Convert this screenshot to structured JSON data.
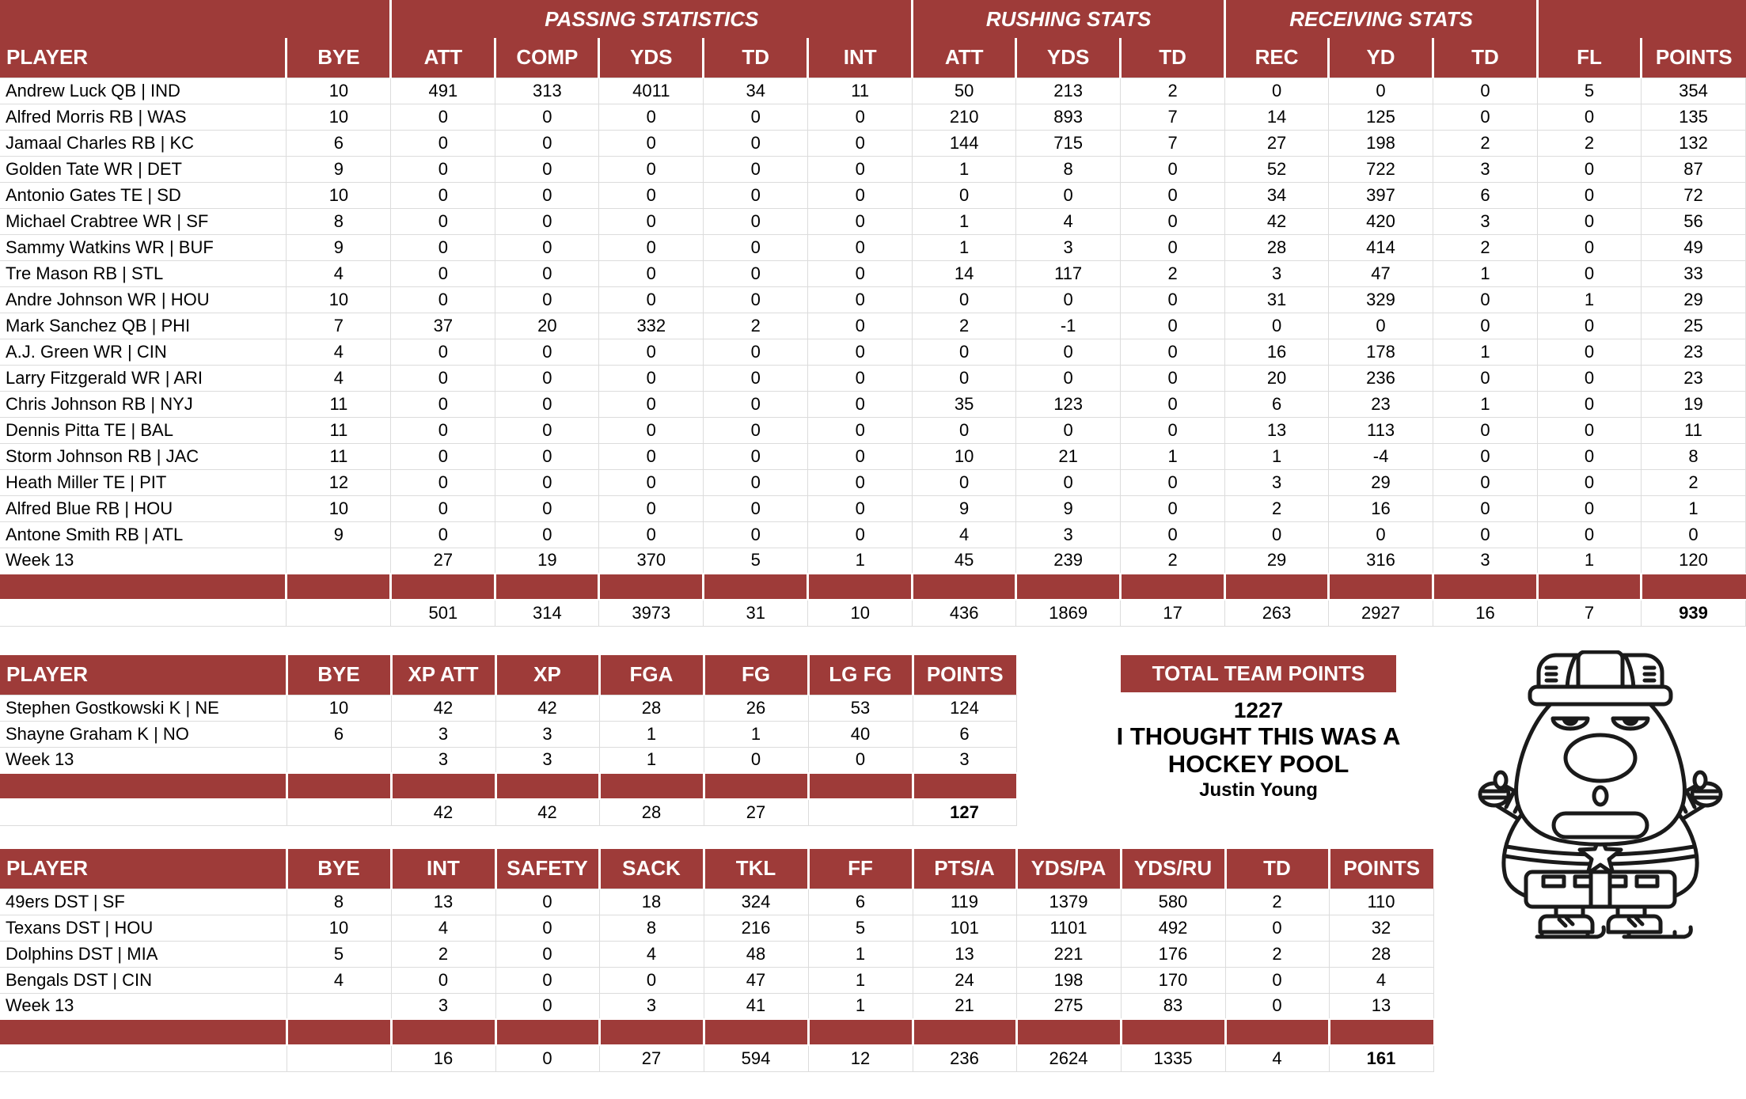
{
  "colors": {
    "header_bg": "#9E3B39",
    "gridline": "#DCDCDC",
    "header_text": "#FFFFFF",
    "body_text": "#000000"
  },
  "tables": {
    "players": {
      "group_headers": [
        {
          "label": "",
          "span": 2
        },
        {
          "label": "PASSING STATISTICS",
          "span": 5
        },
        {
          "label": "RUSHING STATS",
          "span": 3
        },
        {
          "label": "RECEIVING STATS",
          "span": 3
        },
        {
          "label": "",
          "span": 2
        }
      ],
      "columns": [
        "PLAYER",
        "BYE",
        "ATT",
        "COMP",
        "YDS",
        "TD",
        "INT",
        "ATT",
        "YDS",
        "TD",
        "REC",
        "YD",
        "TD",
        "FL",
        "POINTS"
      ],
      "rows": [
        [
          "Andrew Luck QB | IND",
          "10",
          "491",
          "313",
          "4011",
          "34",
          "11",
          "50",
          "213",
          "2",
          "0",
          "0",
          "0",
          "5",
          "354"
        ],
        [
          "Alfred Morris RB | WAS",
          "10",
          "0",
          "0",
          "0",
          "0",
          "0",
          "210",
          "893",
          "7",
          "14",
          "125",
          "0",
          "0",
          "135"
        ],
        [
          "Jamaal Charles RB | KC",
          "6",
          "0",
          "0",
          "0",
          "0",
          "0",
          "144",
          "715",
          "7",
          "27",
          "198",
          "2",
          "2",
          "132"
        ],
        [
          "Golden Tate WR | DET",
          "9",
          "0",
          "0",
          "0",
          "0",
          "0",
          "1",
          "8",
          "0",
          "52",
          "722",
          "3",
          "0",
          "87"
        ],
        [
          "Antonio Gates TE | SD",
          "10",
          "0",
          "0",
          "0",
          "0",
          "0",
          "0",
          "0",
          "0",
          "34",
          "397",
          "6",
          "0",
          "72"
        ],
        [
          "Michael Crabtree WR | SF",
          "8",
          "0",
          "0",
          "0",
          "0",
          "0",
          "1",
          "4",
          "0",
          "42",
          "420",
          "3",
          "0",
          "56"
        ],
        [
          "Sammy Watkins WR | BUF",
          "9",
          "0",
          "0",
          "0",
          "0",
          "0",
          "1",
          "3",
          "0",
          "28",
          "414",
          "2",
          "0",
          "49"
        ],
        [
          "Tre Mason RB | STL",
          "4",
          "0",
          "0",
          "0",
          "0",
          "0",
          "14",
          "117",
          "2",
          "3",
          "47",
          "1",
          "0",
          "33"
        ],
        [
          "Andre Johnson WR | HOU",
          "10",
          "0",
          "0",
          "0",
          "0",
          "0",
          "0",
          "0",
          "0",
          "31",
          "329",
          "0",
          "1",
          "29"
        ],
        [
          "Mark Sanchez QB | PHI",
          "7",
          "37",
          "20",
          "332",
          "2",
          "0",
          "2",
          "-1",
          "0",
          "0",
          "0",
          "0",
          "0",
          "25"
        ],
        [
          "A.J. Green WR | CIN",
          "4",
          "0",
          "0",
          "0",
          "0",
          "0",
          "0",
          "0",
          "0",
          "16",
          "178",
          "1",
          "0",
          "23"
        ],
        [
          "Larry Fitzgerald WR | ARI",
          "4",
          "0",
          "0",
          "0",
          "0",
          "0",
          "0",
          "0",
          "0",
          "20",
          "236",
          "0",
          "0",
          "23"
        ],
        [
          "Chris Johnson RB | NYJ",
          "11",
          "0",
          "0",
          "0",
          "0",
          "0",
          "35",
          "123",
          "0",
          "6",
          "23",
          "1",
          "0",
          "19"
        ],
        [
          "Dennis Pitta TE | BAL",
          "11",
          "0",
          "0",
          "0",
          "0",
          "0",
          "0",
          "0",
          "0",
          "13",
          "113",
          "0",
          "0",
          "11"
        ],
        [
          "Storm Johnson RB | JAC",
          "11",
          "0",
          "0",
          "0",
          "0",
          "0",
          "10",
          "21",
          "1",
          "1",
          "-4",
          "0",
          "0",
          "8"
        ],
        [
          "Heath Miller TE | PIT",
          "12",
          "0",
          "0",
          "0",
          "0",
          "0",
          "0",
          "0",
          "0",
          "3",
          "29",
          "0",
          "0",
          "2"
        ],
        [
          "Alfred Blue RB | HOU",
          "10",
          "0",
          "0",
          "0",
          "0",
          "0",
          "9",
          "9",
          "0",
          "2",
          "16",
          "0",
          "0",
          "1"
        ],
        [
          "Antone Smith RB | ATL",
          "9",
          "0",
          "0",
          "0",
          "0",
          "0",
          "4",
          "3",
          "0",
          "0",
          "0",
          "0",
          "0",
          "0"
        ],
        [
          "Week 13",
          "",
          "27",
          "19",
          "370",
          "5",
          "1",
          "45",
          "239",
          "2",
          "29",
          "316",
          "3",
          "1",
          "120"
        ]
      ],
      "totals": [
        "",
        "",
        "501",
        "314",
        "3973",
        "31",
        "10",
        "436",
        "1869",
        "17",
        "263",
        "2927",
        "16",
        "7",
        "939"
      ]
    },
    "kickers": {
      "columns": [
        "PLAYER",
        "BYE",
        "XP ATT",
        "XP",
        "FGA",
        "FG",
        "LG FG",
        "POINTS"
      ],
      "rows": [
        [
          "Stephen Gostkowski K | NE",
          "10",
          "42",
          "42",
          "28",
          "26",
          "53",
          "124"
        ],
        [
          "Shayne Graham K | NO",
          "6",
          "3",
          "3",
          "1",
          "1",
          "40",
          "6"
        ],
        [
          "Week 13",
          "",
          "3",
          "3",
          "1",
          "0",
          "0",
          "3"
        ]
      ],
      "totals": [
        "",
        "",
        "42",
        "42",
        "28",
        "27",
        "",
        "127"
      ]
    },
    "defense": {
      "columns": [
        "PLAYER",
        "BYE",
        "INT",
        "SAFETY",
        "SACK",
        "TKL",
        "FF",
        "PTS/A",
        "YDS/PA",
        "YDS/RU",
        "TD",
        "POINTS"
      ],
      "rows": [
        [
          "49ers DST | SF",
          "8",
          "13",
          "0",
          "18",
          "324",
          "6",
          "119",
          "1379",
          "580",
          "2",
          "110"
        ],
        [
          "Texans DST | HOU",
          "10",
          "4",
          "0",
          "8",
          "216",
          "5",
          "101",
          "1101",
          "492",
          "0",
          "32"
        ],
        [
          "Dolphins DST | MIA",
          "5",
          "2",
          "0",
          "4",
          "48",
          "1",
          "13",
          "221",
          "176",
          "2",
          "28"
        ],
        [
          "Bengals DST | CIN",
          "4",
          "0",
          "0",
          "0",
          "47",
          "1",
          "24",
          "198",
          "170",
          "0",
          "4"
        ],
        [
          "Week 13",
          "",
          "3",
          "0",
          "3",
          "41",
          "1",
          "21",
          "275",
          "83",
          "0",
          "13"
        ]
      ],
      "totals": [
        "",
        "",
        "16",
        "0",
        "27",
        "594",
        "12",
        "236",
        "2624",
        "1335",
        "4",
        "161"
      ]
    }
  },
  "team_points": {
    "title": "TOTAL TEAM POINTS",
    "value": "1227",
    "note_line1": "I THOUGHT THIS WAS A",
    "note_line2": "HOCKEY POOL",
    "owner": "Justin Young"
  }
}
